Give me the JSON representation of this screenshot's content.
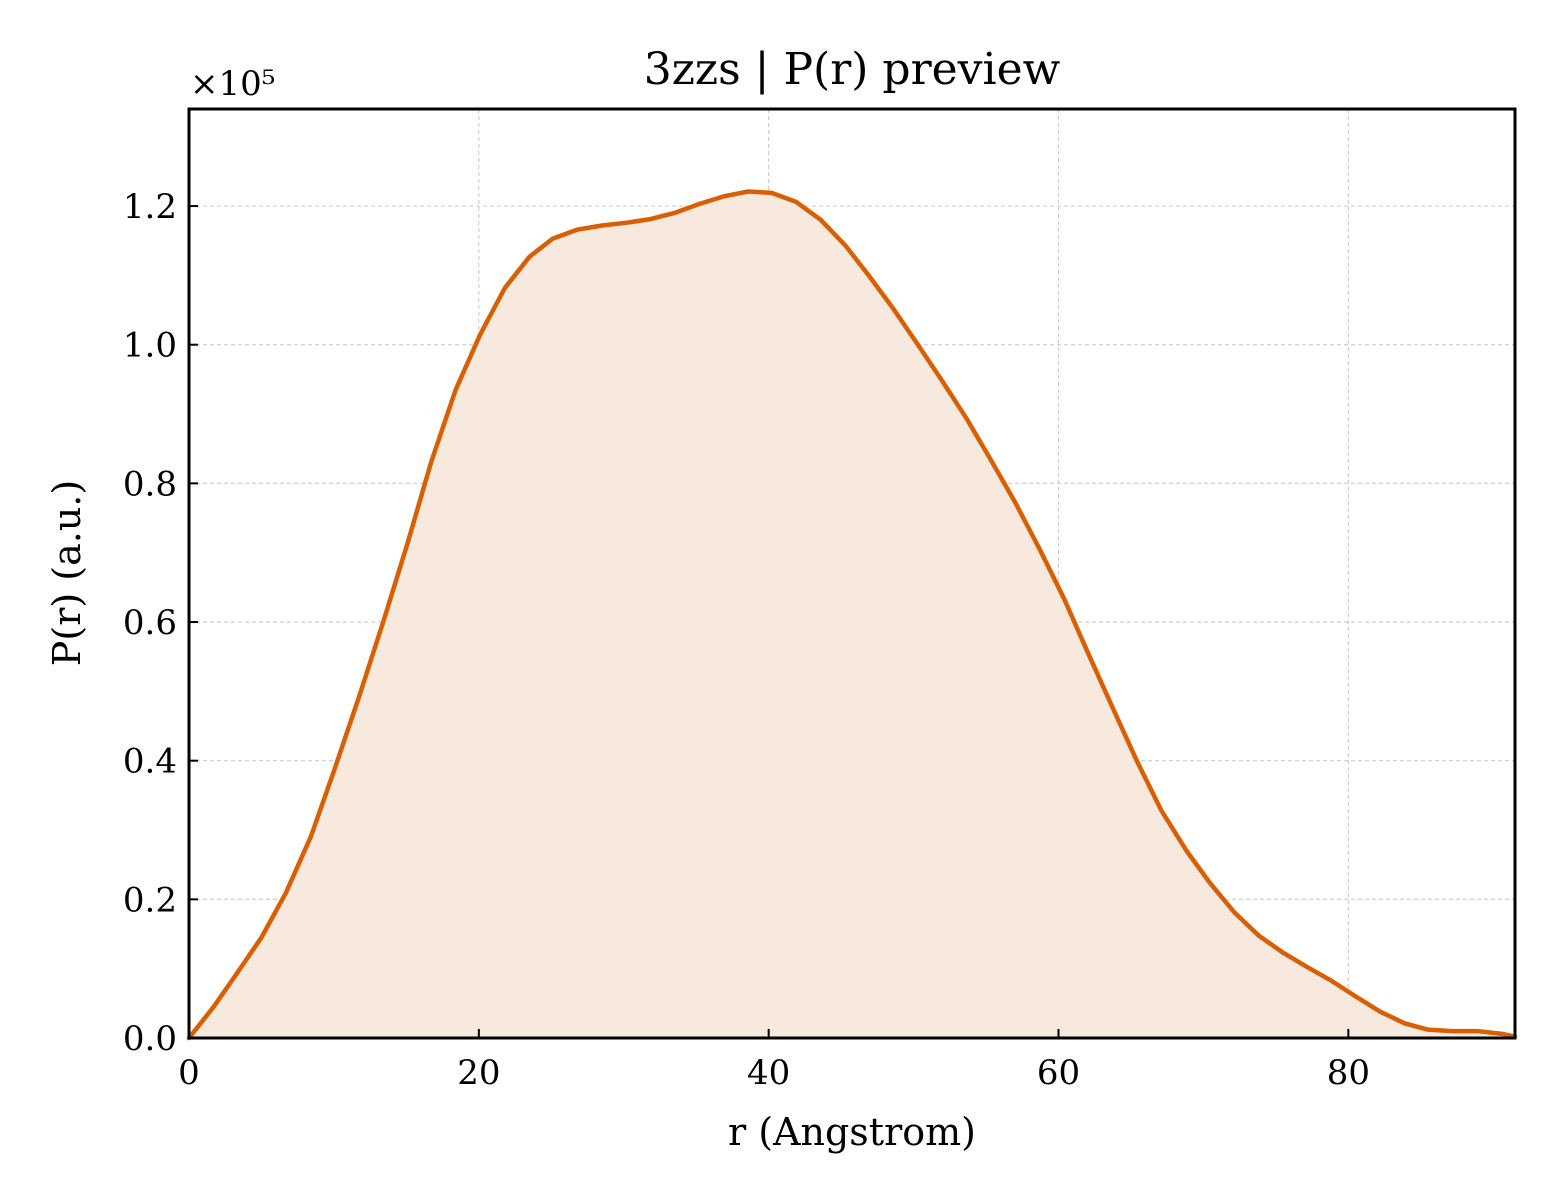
{
  "chart_data": {
    "type": "area",
    "title": "3zzs | P(r) preview",
    "xlabel": "r (Angstrom)",
    "ylabel": "P(r) (a.u.)",
    "y_multiplier_label": "×10⁵",
    "xlim": [
      0,
      91.5
    ],
    "ylim": [
      0,
      1.34
    ],
    "xticks": [
      0,
      20,
      40,
      60,
      80
    ],
    "xtick_labels": [
      "0",
      "20",
      "40",
      "60",
      "80"
    ],
    "yticks": [
      0.0,
      0.2,
      0.4,
      0.6,
      0.8,
      1.0,
      1.2
    ],
    "ytick_labels": [
      "0.0",
      "0.2",
      "0.4",
      "0.6",
      "0.8",
      "1.0",
      "1.2"
    ],
    "grid": true,
    "line_color": "#d95f02",
    "fill_color": "#f8e9df",
    "series": [
      {
        "x": [
          0,
          1.7,
          3.3,
          5.0,
          6.7,
          8.4,
          10.0,
          11.7,
          13.4,
          15.1,
          16.7,
          18.4,
          20.1,
          21.8,
          23.5,
          25.1,
          26.8,
          28.5,
          30.2,
          31.8,
          33.5,
          35.2,
          36.9,
          38.6,
          40.2,
          41.9,
          43.6,
          45.3,
          46.9,
          48.6,
          50.3,
          52.0,
          53.7,
          55.3,
          57.0,
          58.7,
          60.4,
          62.0,
          63.7,
          65.4,
          67.1,
          68.8,
          70.4,
          72.1,
          73.8,
          75.5,
          77.1,
          78.8,
          80.5,
          82.2,
          83.9,
          85.5,
          87.2,
          88.9,
          90.6,
          91.5
        ],
        "y": [
          0.0,
          0.045,
          0.093,
          0.145,
          0.21,
          0.29,
          0.385,
          0.49,
          0.6,
          0.715,
          0.83,
          0.935,
          1.015,
          1.082,
          1.127,
          1.153,
          1.166,
          1.172,
          1.176,
          1.181,
          1.19,
          1.203,
          1.214,
          1.221,
          1.219,
          1.206,
          1.18,
          1.143,
          1.1,
          1.052,
          1.0,
          0.947,
          0.892,
          0.835,
          0.773,
          0.705,
          0.633,
          0.557,
          0.478,
          0.4,
          0.328,
          0.271,
          0.225,
          0.182,
          0.148,
          0.123,
          0.103,
          0.083,
          0.06,
          0.038,
          0.021,
          0.012,
          0.01,
          0.01,
          0.006,
          0.002
        ]
      }
    ]
  }
}
